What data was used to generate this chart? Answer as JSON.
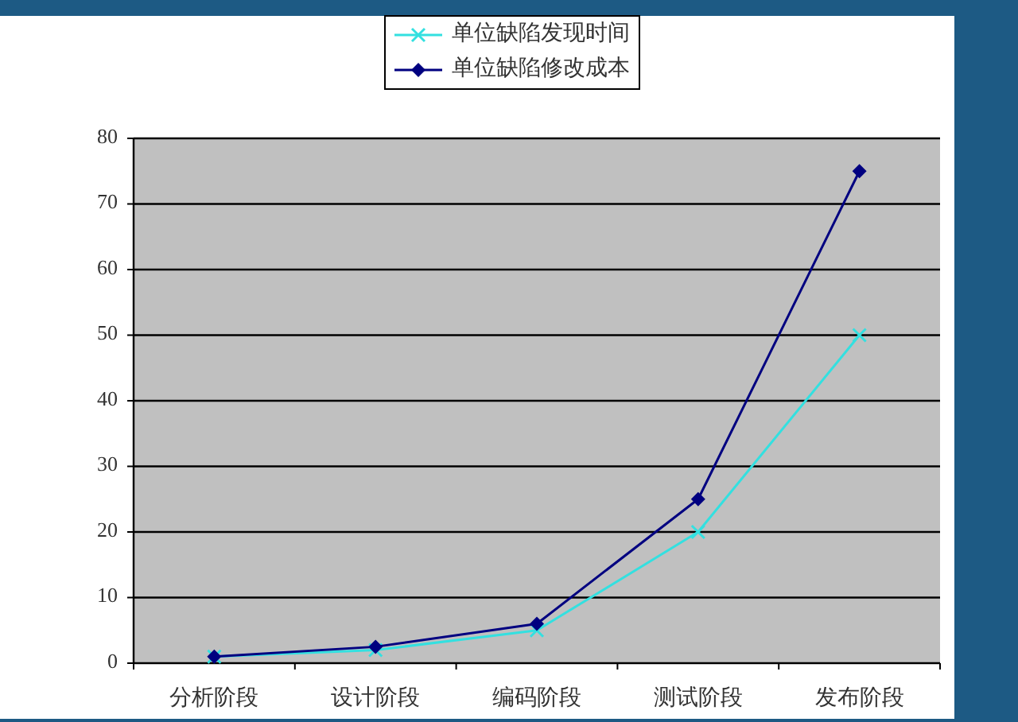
{
  "chart_data": {
    "type": "line",
    "categories": [
      "分析阶段",
      "设计阶段",
      "编码阶段",
      "测试阶段",
      "发布阶段"
    ],
    "series": [
      {
        "name": "单位缺陷发现时间",
        "color": "#33e0e0",
        "marker": "cross",
        "values": [
          1,
          2,
          5,
          20,
          50
        ]
      },
      {
        "name": "单位缺陷修改成本",
        "color": "#000080",
        "marker": "diamond",
        "values": [
          1,
          2.5,
          6,
          25,
          75
        ]
      }
    ],
    "ylim": [
      0,
      80
    ],
    "yticks": [
      0,
      10,
      20,
      30,
      40,
      50,
      60,
      70,
      80
    ],
    "grid": "y",
    "legend": "top"
  }
}
